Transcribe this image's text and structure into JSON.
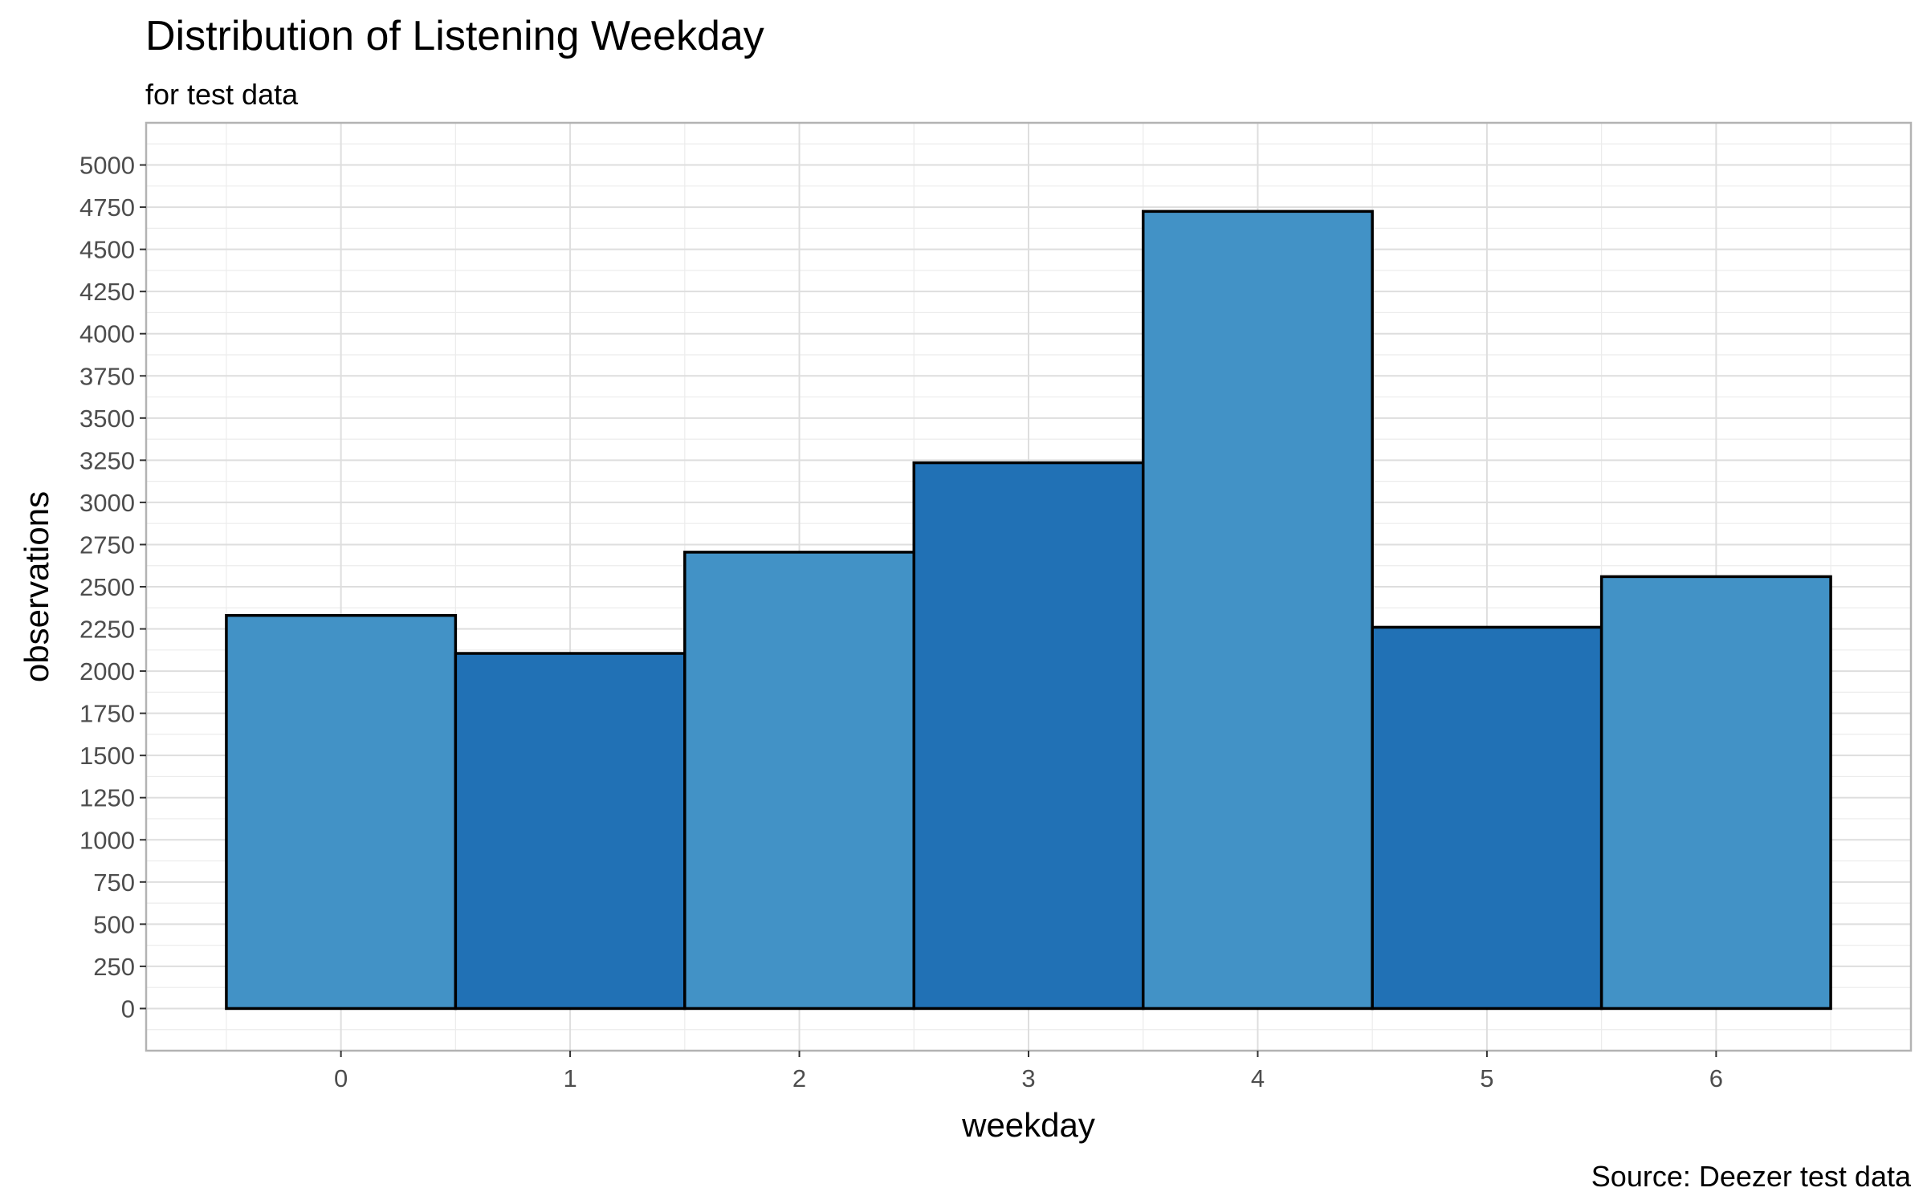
{
  "chart_data": {
    "type": "bar",
    "title": "Distribution of Listening Weekday",
    "subtitle": "for test data",
    "caption": "Source: Deezer test data",
    "xlabel": "weekday",
    "ylabel": "observations",
    "categories": [
      "0",
      "1",
      "2",
      "3",
      "4",
      "5",
      "6"
    ],
    "values": [
      2330,
      2105,
      2705,
      3235,
      4725,
      2260,
      2560
    ],
    "y_ticks": [
      0,
      250,
      500,
      750,
      1000,
      1250,
      1500,
      1750,
      2000,
      2250,
      2500,
      2750,
      3000,
      3250,
      3500,
      3750,
      4000,
      4250,
      4500,
      4750,
      5000
    ],
    "ylim": [
      -250,
      5250
    ],
    "xlim": [
      -0.85,
      6.85
    ],
    "grid": true,
    "legend": "none",
    "colors": {
      "bar_light": "#4292c6",
      "bar_dark": "#2171b5",
      "bar_outline": "#000000",
      "grid_major": "#dedede",
      "grid_minor": "#ececec",
      "panel_border": "#b3b3b3"
    }
  }
}
